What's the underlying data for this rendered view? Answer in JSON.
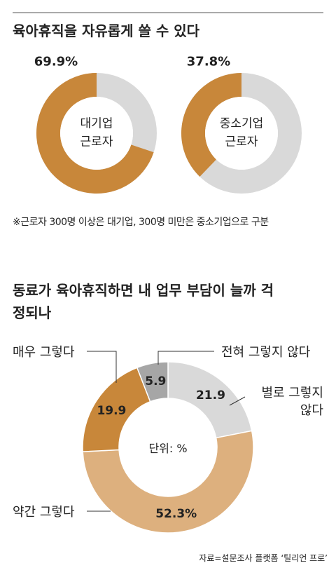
{
  "headline": "육아휴직을 자유롭게 쓸 수 있다",
  "footnote": "※근로자 300명 이상은 대기업, 300명 미만은 중소기업으로 구분",
  "source": "자료=설문조사 플랫폼 ‘틸리언 프로’",
  "chart_data": [
    {
      "type": "donut",
      "center_label": "대기업 근로자",
      "values": [
        69.9
      ],
      "value_labels": [
        "69.9%"
      ],
      "colors": [
        "#c8873a"
      ],
      "track_color": "#d9d9d9",
      "ylim": [
        0,
        100
      ],
      "clockwise": false
    },
    {
      "type": "donut",
      "center_label": "중소기업 근로자",
      "values": [
        37.8
      ],
      "value_labels": [
        "37.8%"
      ],
      "colors": [
        "#c8873a"
      ],
      "track_color": "#d9d9d9",
      "ylim": [
        0,
        100
      ],
      "clockwise": false
    },
    {
      "type": "donut",
      "title": "동료가 육아휴직하면 내 업무 부담이 늘까 걱정되나",
      "center_label": "단위: %",
      "categories": [
        "별로 그렇지 않다",
        "약간 그렇다",
        "매우 그렇다",
        "전혀 그렇지 않다"
      ],
      "values": [
        21.9,
        52.3,
        19.9,
        5.9
      ],
      "value_labels": [
        "21.9",
        "52.3%",
        "19.9",
        "5.9"
      ],
      "colors": [
        "#d9d9d9",
        "#ddb07e",
        "#c8873a",
        "#a6a6a6"
      ],
      "clockwise": true
    }
  ]
}
